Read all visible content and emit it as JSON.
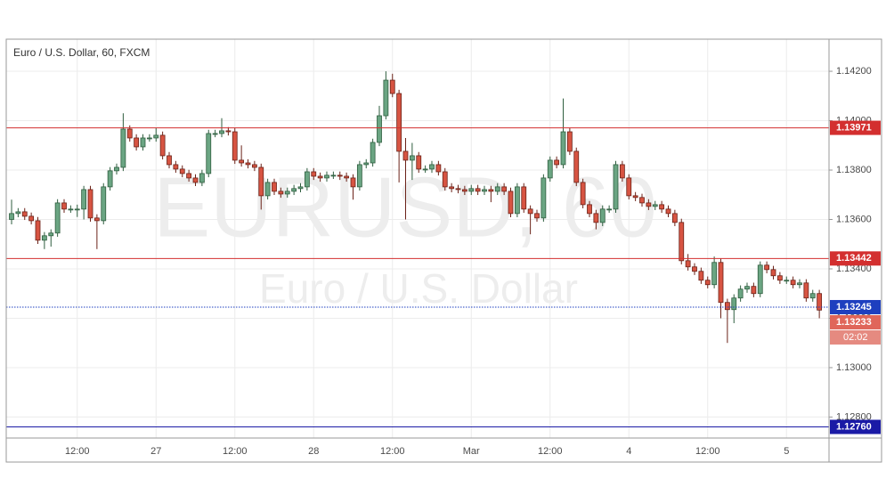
{
  "chart_data": {
    "type": "candlestick",
    "title": "Euro / U.S. Dollar, 60, FXCM",
    "watermark": "EURUSD, 60",
    "watermark_subtitle": "Euro / U.S. Dollar",
    "up_color": "#6ba583",
    "down_color": "#d75442",
    "categories": [
      null,
      null,
      null,
      null,
      null,
      null,
      null,
      null,
      null,
      null,
      "12:00",
      null,
      null,
      null,
      null,
      null,
      null,
      null,
      null,
      null,
      null,
      null,
      "27",
      null,
      null,
      null,
      null,
      null,
      null,
      null,
      null,
      null,
      null,
      null,
      "12:00",
      null,
      null,
      null,
      null,
      null,
      null,
      null,
      null,
      null,
      null,
      null,
      "28",
      null,
      null,
      null,
      null,
      null,
      null,
      null,
      null,
      null,
      null,
      null,
      "12:00",
      null,
      null,
      null,
      null,
      null,
      null,
      null,
      null,
      null,
      null,
      null,
      "Mar",
      null,
      null,
      null,
      null,
      null,
      null,
      null,
      null,
      null,
      null,
      null,
      "12:00",
      null,
      null,
      null,
      null,
      null,
      null,
      null,
      null,
      null,
      null,
      null,
      "4",
      null,
      null,
      null,
      null,
      null,
      null,
      null,
      null,
      null,
      null,
      null,
      "12:00",
      null,
      null,
      null,
      null,
      null,
      null,
      null,
      null,
      null,
      null,
      null,
      "5",
      null,
      null,
      null,
      null,
      null
    ],
    "open": [
      1.136,
      1.13624,
      1.13631,
      1.13613,
      1.13595,
      1.13516,
      1.13534,
      1.13545,
      1.13667,
      1.13642,
      1.13642,
      1.13642,
      1.13721,
      1.13606,
      1.13595,
      1.13732,
      1.13797,
      1.13811,
      1.13966,
      1.1393,
      1.13894,
      1.1393,
      1.1393,
      1.13941,
      1.13858,
      1.13822,
      1.13804,
      1.13786,
      1.13768,
      1.1375,
      1.13786,
      1.13948,
      1.13948,
      1.13959,
      1.13955,
      1.1384,
      1.13829,
      1.13822,
      1.13811,
      1.13696,
      1.1375,
      1.13714,
      1.13703,
      1.13714,
      1.13725,
      1.13732,
      1.13793,
      1.13775,
      1.13768,
      1.13779,
      1.13779,
      1.13775,
      1.13768,
      1.13732,
      1.13822,
      1.13829,
      1.13912,
      1.1402,
      1.14164,
      1.1411,
      1.13876,
      1.1384,
      1.13858,
      1.13804,
      1.13804,
      1.13822,
      1.13793,
      1.13732,
      1.13725,
      1.13721,
      1.13714,
      1.13725,
      1.13714,
      1.13721,
      1.13714,
      1.13732,
      1.13714,
      1.13624,
      1.13732,
      1.13642,
      1.13624,
      1.13606,
      1.13768,
      1.1384,
      1.13822,
      1.13955,
      1.13876,
      1.1375,
      1.1366,
      1.13624,
      1.13588,
      1.13642,
      1.13642,
      1.13822,
      1.13768,
      1.13696,
      1.13689,
      1.13667,
      1.13653,
      1.1366,
      1.13642,
      1.13624,
      1.13588,
      1.13433,
      1.13408,
      1.1339,
      1.13354,
      1.13336,
      1.13426,
      1.13264,
      1.13235,
      1.13282,
      1.13318,
      1.13329,
      1.133,
      1.13415,
      1.13397,
      1.13372,
      1.13354,
      1.13354,
      1.13336,
      1.13343,
      1.13282,
      1.133
    ],
    "high": [
      1.1368,
      1.13646,
      1.13646,
      1.13628,
      1.1361,
      1.13549,
      1.1356,
      1.13682,
      1.13682,
      1.13657,
      1.1366,
      1.13736,
      1.13736,
      1.13621,
      1.13747,
      1.13812,
      1.13826,
      1.1403,
      1.13981,
      1.13945,
      1.13945,
      1.13945,
      1.1397,
      1.13956,
      1.13873,
      1.13837,
      1.13819,
      1.13801,
      1.13783,
      1.13801,
      1.13963,
      1.13963,
      1.1401,
      1.13974,
      1.1397,
      1.139,
      1.13844,
      1.13837,
      1.13826,
      1.13765,
      1.13765,
      1.13729,
      1.13729,
      1.1374,
      1.13747,
      1.13808,
      1.13808,
      1.1379,
      1.13794,
      1.13794,
      1.13794,
      1.1379,
      1.13783,
      1.13837,
      1.13844,
      1.13927,
      1.1406,
      1.142,
      1.1419,
      1.14125,
      1.1393,
      1.1391,
      1.13873,
      1.13819,
      1.13837,
      1.13837,
      1.13808,
      1.13747,
      1.1374,
      1.13736,
      1.1374,
      1.1374,
      1.13736,
      1.13736,
      1.13747,
      1.13747,
      1.13729,
      1.13747,
      1.13747,
      1.13657,
      1.13639,
      1.13783,
      1.13855,
      1.13855,
      1.1409,
      1.1397,
      1.13891,
      1.13765,
      1.13675,
      1.13639,
      1.13657,
      1.13657,
      1.13837,
      1.13837,
      1.13783,
      1.13711,
      1.13704,
      1.13682,
      1.13675,
      1.13675,
      1.13657,
      1.13639,
      1.13603,
      1.1346,
      1.13423,
      1.13405,
      1.13369,
      1.1345,
      1.13441,
      1.13279,
      1.13297,
      1.13333,
      1.13344,
      1.13344,
      1.1343,
      1.1343,
      1.13412,
      1.13387,
      1.13369,
      1.13369,
      1.13358,
      1.13358,
      1.13315,
      1.13315
    ],
    "low": [
      1.1358,
      1.13609,
      1.13598,
      1.1358,
      1.13501,
      1.1348,
      1.1349,
      1.1353,
      1.13627,
      1.13627,
      1.1361,
      1.136,
      1.13591,
      1.1348,
      1.1358,
      1.13717,
      1.13782,
      1.13796,
      1.13915,
      1.13879,
      1.13879,
      1.13915,
      1.13915,
      1.13843,
      1.13807,
      1.13789,
      1.13771,
      1.13753,
      1.13735,
      1.13735,
      1.13771,
      1.13933,
      1.13933,
      1.1394,
      1.13825,
      1.13814,
      1.13807,
      1.13796,
      1.1364,
      1.13681,
      1.13699,
      1.13688,
      1.13688,
      1.13699,
      1.1371,
      1.13717,
      1.1376,
      1.13753,
      1.13753,
      1.13764,
      1.1376,
      1.13753,
      1.1368,
      1.13717,
      1.13807,
      1.13814,
      1.13897,
      1.14005,
      1.14095,
      1.1375,
      1.136,
      1.1376,
      1.13789,
      1.13789,
      1.13789,
      1.13778,
      1.13717,
      1.1371,
      1.13706,
      1.13699,
      1.13699,
      1.13699,
      1.13699,
      1.1367,
      1.13699,
      1.13699,
      1.13609,
      1.13609,
      1.13627,
      1.1354,
      1.13591,
      1.13591,
      1.13753,
      1.13807,
      1.13807,
      1.13861,
      1.13735,
      1.13645,
      1.13609,
      1.1356,
      1.13573,
      1.13627,
      1.13627,
      1.13753,
      1.13681,
      1.13674,
      1.13652,
      1.13638,
      1.13638,
      1.13627,
      1.13609,
      1.13573,
      1.13418,
      1.13393,
      1.13375,
      1.13339,
      1.13321,
      1.13321,
      1.132,
      1.131,
      1.1318,
      1.13267,
      1.13303,
      1.13285,
      1.13285,
      1.13382,
      1.13357,
      1.13339,
      1.13339,
      1.13321,
      1.13321,
      1.13267,
      1.13267,
      1.132
    ],
    "close": [
      1.13624,
      1.13631,
      1.13613,
      1.13595,
      1.13516,
      1.13534,
      1.13545,
      1.13667,
      1.13642,
      1.13642,
      1.13642,
      1.13721,
      1.13606,
      1.13595,
      1.13732,
      1.13797,
      1.13811,
      1.13966,
      1.1393,
      1.13894,
      1.1393,
      1.1393,
      1.13941,
      1.13858,
      1.13822,
      1.13804,
      1.13786,
      1.13768,
      1.1375,
      1.13786,
      1.13948,
      1.13948,
      1.13959,
      1.13955,
      1.1384,
      1.13829,
      1.13822,
      1.13811,
      1.13696,
      1.1375,
      1.13714,
      1.13703,
      1.13714,
      1.13725,
      1.13732,
      1.13793,
      1.13775,
      1.13768,
      1.13779,
      1.13779,
      1.13775,
      1.13768,
      1.13732,
      1.13822,
      1.13829,
      1.13912,
      1.1402,
      1.14164,
      1.1411,
      1.13876,
      1.1384,
      1.13858,
      1.13804,
      1.13804,
      1.13822,
      1.13793,
      1.13732,
      1.13725,
      1.13721,
      1.13714,
      1.13725,
      1.13714,
      1.13721,
      1.13714,
      1.13732,
      1.13714,
      1.13624,
      1.13732,
      1.13642,
      1.13624,
      1.13606,
      1.13768,
      1.1384,
      1.13822,
      1.13955,
      1.13876,
      1.1375,
      1.1366,
      1.13624,
      1.13588,
      1.13642,
      1.13642,
      1.13822,
      1.13768,
      1.13696,
      1.13689,
      1.13667,
      1.13653,
      1.1366,
      1.13642,
      1.13624,
      1.13588,
      1.13433,
      1.13408,
      1.1339,
      1.13354,
      1.13336,
      1.13426,
      1.13264,
      1.13235,
      1.13282,
      1.13318,
      1.13329,
      1.133,
      1.13415,
      1.13397,
      1.13372,
      1.13354,
      1.13354,
      1.13336,
      1.13343,
      1.13282,
      1.133,
      1.13233
    ],
    "ylim": [
      1.12715,
      1.1433
    ],
    "yticks": [
      {
        "value": 1.128,
        "label": "1.12800"
      },
      {
        "value": 1.13,
        "label": "1.13000"
      },
      {
        "value": 1.132,
        "label": "1.13200"
      },
      {
        "value": 1.134,
        "label": "1.13400"
      },
      {
        "value": 1.136,
        "label": "1.13600"
      },
      {
        "value": 1.138,
        "label": "1.13800"
      },
      {
        "value": 1.14,
        "label": "1.14000"
      },
      {
        "value": 1.142,
        "label": "1.14200"
      }
    ],
    "grid": true,
    "lines": [
      {
        "value": 1.13971,
        "label": "1.13971",
        "color": "#d32f2f",
        "style": "solid"
      },
      {
        "value": 1.13442,
        "label": "1.13442",
        "color": "#d32f2f",
        "style": "solid"
      },
      {
        "value": 1.13245,
        "label": "1.13245",
        "color": "#1e3fbf",
        "style": "dotted"
      },
      {
        "value": 1.1276,
        "label": "1.12760",
        "color": "#1a1aa6",
        "style": "solid"
      }
    ],
    "last_price": {
      "value": 1.13233,
      "label": "1.13233",
      "color": "#e0665a"
    },
    "countdown": "02:02"
  }
}
